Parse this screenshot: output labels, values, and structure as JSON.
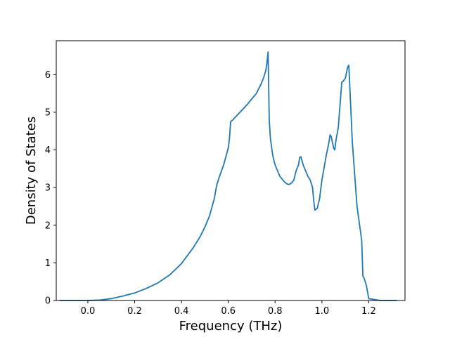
{
  "chart_data": {
    "type": "line",
    "title": "",
    "xlabel": "Frequency (THz)",
    "ylabel": "Density of States",
    "xlim": [
      -0.135,
      1.355
    ],
    "ylim": [
      0,
      6.9
    ],
    "xticks": [
      0.0,
      0.2,
      0.4,
      0.6,
      0.8,
      1.0,
      1.2
    ],
    "xtick_labels": [
      "0.0",
      "0.2",
      "0.4",
      "0.6",
      "0.8",
      "1.0",
      "1.2"
    ],
    "yticks": [
      0,
      1,
      2,
      3,
      4,
      5,
      6
    ],
    "ytick_labels": [
      "0",
      "1",
      "2",
      "3",
      "4",
      "5",
      "6"
    ],
    "grid": false,
    "line_color": "#1f77b4",
    "series": [
      {
        "x": [
          -0.12,
          0.0,
          0.05,
          0.1,
          0.15,
          0.2,
          0.25,
          0.3,
          0.35,
          0.4,
          0.45,
          0.48,
          0.5,
          0.52,
          0.54,
          0.55,
          0.56,
          0.58,
          0.6,
          0.605,
          0.61,
          0.62,
          0.63,
          0.65,
          0.68,
          0.7,
          0.72,
          0.74,
          0.75,
          0.76,
          0.765,
          0.77,
          0.775,
          0.78,
          0.79,
          0.8,
          0.82,
          0.84,
          0.85,
          0.86,
          0.87,
          0.88,
          0.89,
          0.9,
          0.905,
          0.91,
          0.92,
          0.94,
          0.95,
          0.96,
          0.965,
          0.97,
          0.98,
          0.99,
          1.0,
          1.01,
          1.02,
          1.03,
          1.035,
          1.04,
          1.05,
          1.055,
          1.06,
          1.07,
          1.075,
          1.08,
          1.085,
          1.09,
          1.1,
          1.11,
          1.115,
          1.13,
          1.15,
          1.17,
          1.175,
          1.18,
          1.19,
          1.2,
          1.25,
          1.32
        ],
        "y": [
          0,
          0,
          0.01,
          0.05,
          0.12,
          0.2,
          0.32,
          0.47,
          0.68,
          0.98,
          1.4,
          1.7,
          1.95,
          2.25,
          2.7,
          3.05,
          3.25,
          3.6,
          4.05,
          4.3,
          4.75,
          4.8,
          4.87,
          5.0,
          5.2,
          5.35,
          5.5,
          5.75,
          5.9,
          6.1,
          6.3,
          6.6,
          4.8,
          4.3,
          3.85,
          3.6,
          3.3,
          3.15,
          3.1,
          3.08,
          3.12,
          3.2,
          3.45,
          3.6,
          3.8,
          3.82,
          3.6,
          3.3,
          3.2,
          3.0,
          2.65,
          2.4,
          2.45,
          2.7,
          3.2,
          3.55,
          3.9,
          4.2,
          4.4,
          4.35,
          4.05,
          4.0,
          4.25,
          4.6,
          5.0,
          5.4,
          5.8,
          5.82,
          5.9,
          6.2,
          6.25,
          4.2,
          2.5,
          1.6,
          0.65,
          0.6,
          0.4,
          0.05,
          0,
          0
        ]
      }
    ]
  }
}
